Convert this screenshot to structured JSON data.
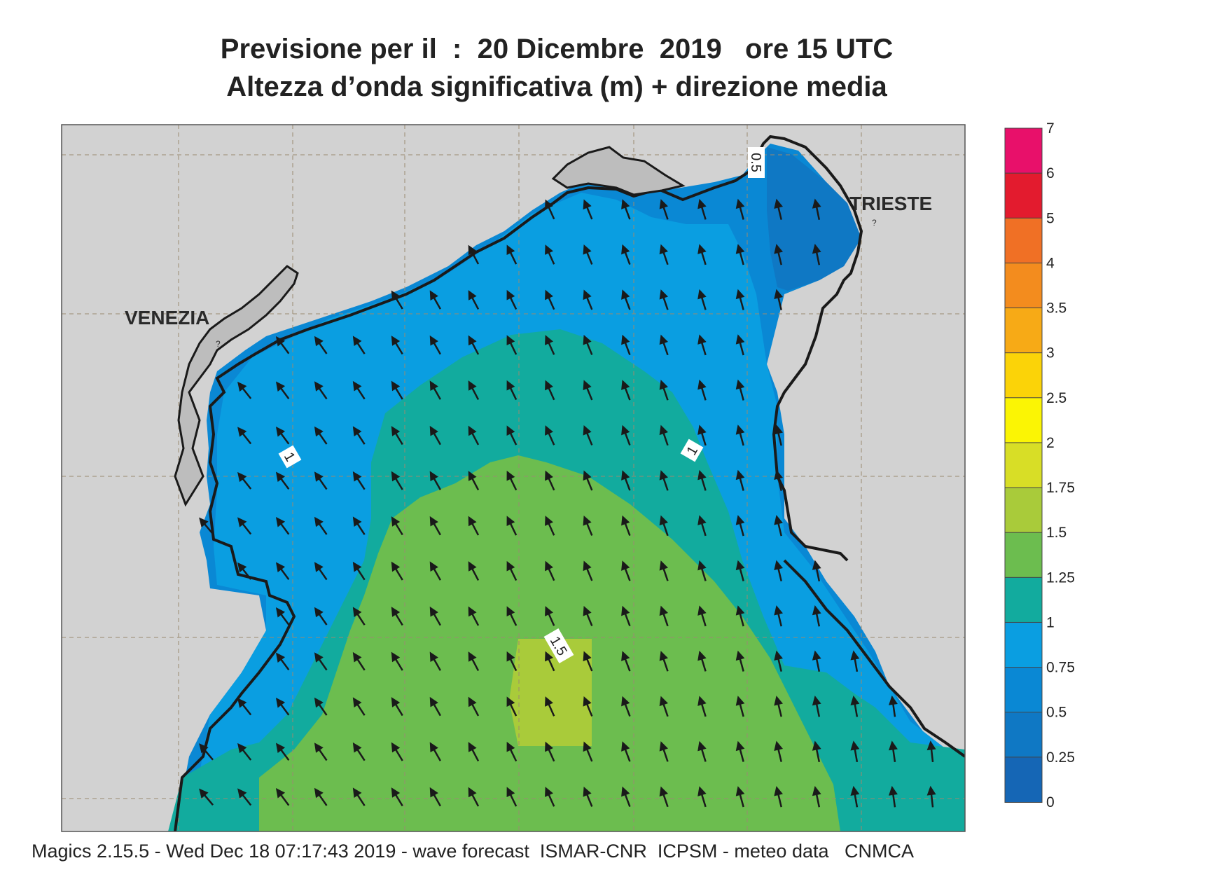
{
  "title": {
    "line1": "Previsione per il  :  20 Dicembre  2019   ore 15 UTC",
    "line2": "Altezza d’onda significativa (m) + direzione media"
  },
  "places": {
    "venezia": "VENEZIA",
    "trieste": "TRIESTE"
  },
  "contour_labels": {
    "west": "1",
    "east": "1",
    "center": "1.5",
    "north": "0.5"
  },
  "colorbar": {
    "ticks": [
      "7",
      "6",
      "5",
      "4",
      "3.5",
      "3",
      "2.5",
      "2",
      "1.75",
      "1.5",
      "1.25",
      "1",
      "0.75",
      "0.5",
      "0.25",
      "0"
    ],
    "colors": [
      "#e8106a",
      "#e31b2e",
      "#f07025",
      "#f38c1e",
      "#f7aa16",
      "#fbd308",
      "#fbf504",
      "#d8de26",
      "#a9cb3a",
      "#6cbd4f",
      "#12ab9e",
      "#0a9ee1",
      "#0a88d4",
      "#0f78c4",
      "#1566b5"
    ]
  },
  "map": {
    "land_color": "#d2d2d2",
    "coast_color": "#1a1a1a",
    "border_color": "#c8922c",
    "arrow_direction": "NNW"
  },
  "footer": "Magics 2.15.5 - Wed Dec 18 07:17:43 2019 - wave forecast  ISMAR-CNR  ICPSM - meteo data   CNMCA"
}
